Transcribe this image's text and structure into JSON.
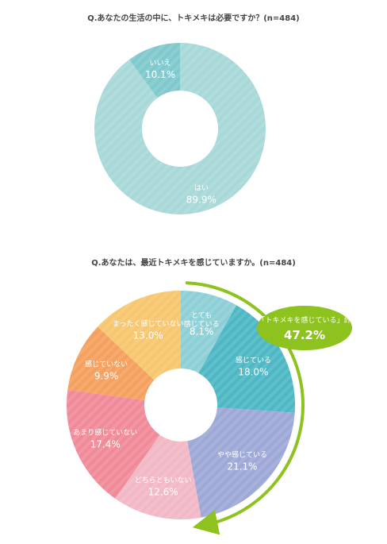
{
  "chart_data": [
    {
      "type": "pie",
      "title": "Q.あなたの生活の中に、トキメキは必要ですか？(n=484)",
      "categories": [
        "はい",
        "いいえ"
      ],
      "values": [
        89.9,
        10.1
      ],
      "value_labels": [
        "89.9%",
        "10.1%"
      ],
      "colors": [
        "#a8d8d8",
        "#7fc8cc"
      ],
      "donut": true
    },
    {
      "type": "pie",
      "title": "Q.あなたは、最近トキメキを感じていますか。(n=484)",
      "categories": [
        "とても\n感じている",
        "感じている",
        "やや感じている",
        "どちらともいない",
        "あまり感じていない",
        "感じていない",
        "まったく感じていない"
      ],
      "values": [
        8.1,
        18.0,
        21.1,
        12.6,
        17.4,
        9.9,
        13.0
      ],
      "value_labels": [
        "8.1%",
        "18.0%",
        "21.1%",
        "12.6%",
        "17.4%",
        "9.9%",
        "13.0%"
      ],
      "colors": [
        "#8dcfd6",
        "#4db8c4",
        "#9da8d6",
        "#f2b8c6",
        "#f08a98",
        "#f5a05e",
        "#f7c66e"
      ],
      "donut": true,
      "annotation": {
        "label": "「トキメキを感じている」計",
        "value": "47.2%",
        "color": "#8dc21f"
      }
    }
  ]
}
